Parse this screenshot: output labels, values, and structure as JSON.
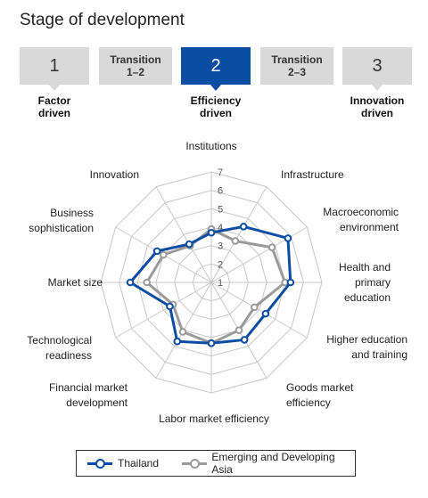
{
  "header": {
    "title": "Stage of development",
    "stages": [
      {
        "label": "1",
        "kind": "num",
        "caption": "Factor\ndriven",
        "active": false
      },
      {
        "label": "Transition\n1–2",
        "kind": "trans",
        "caption": "",
        "active": false
      },
      {
        "label": "2",
        "kind": "num",
        "caption": "Efficiency\ndriven",
        "active": true
      },
      {
        "label": "Transition\n2–3",
        "kind": "trans",
        "caption": "",
        "active": false
      },
      {
        "label": "3",
        "kind": "num",
        "caption": "Innovation\ndriven",
        "active": false
      }
    ]
  },
  "colors": {
    "thailand": "#0a4da2",
    "asia": "#9a9a9a",
    "grid": "#c8c8c8",
    "stage_box": "#d9d9d9"
  },
  "chart_data": {
    "type": "radar",
    "axes": [
      "Institutions",
      "Infrastructure",
      "Macroeconomic\nenvironment",
      "Health and\nprimary\neducation",
      "Higher education\nand training",
      "Goods market\nefficiency",
      "Labor market efficiency",
      "Financial market\ndevelopment",
      "Technological\nreadiness",
      "Market size",
      "Business\nsophistication",
      "Innovation"
    ],
    "scale_ticks": [
      "1",
      "2",
      "3",
      "4",
      "5",
      "6",
      "7"
    ],
    "range": [
      1,
      7
    ],
    "series": [
      {
        "name": "Thailand",
        "values": [
          3.7,
          4.5,
          5.8,
          5.3,
          4.4,
          4.6,
          4.3,
          4.7,
          3.6,
          5.4,
          4.4,
          3.4
        ]
      },
      {
        "name": "Emerging and Developing Asia",
        "values": [
          3.9,
          3.6,
          4.8,
          5.0,
          3.7,
          4.0,
          4.3,
          4.1,
          3.4,
          4.5,
          4.0,
          3.3
        ]
      }
    ]
  },
  "legend": {
    "items": [
      "Thailand",
      "Emerging and Developing Asia"
    ]
  }
}
